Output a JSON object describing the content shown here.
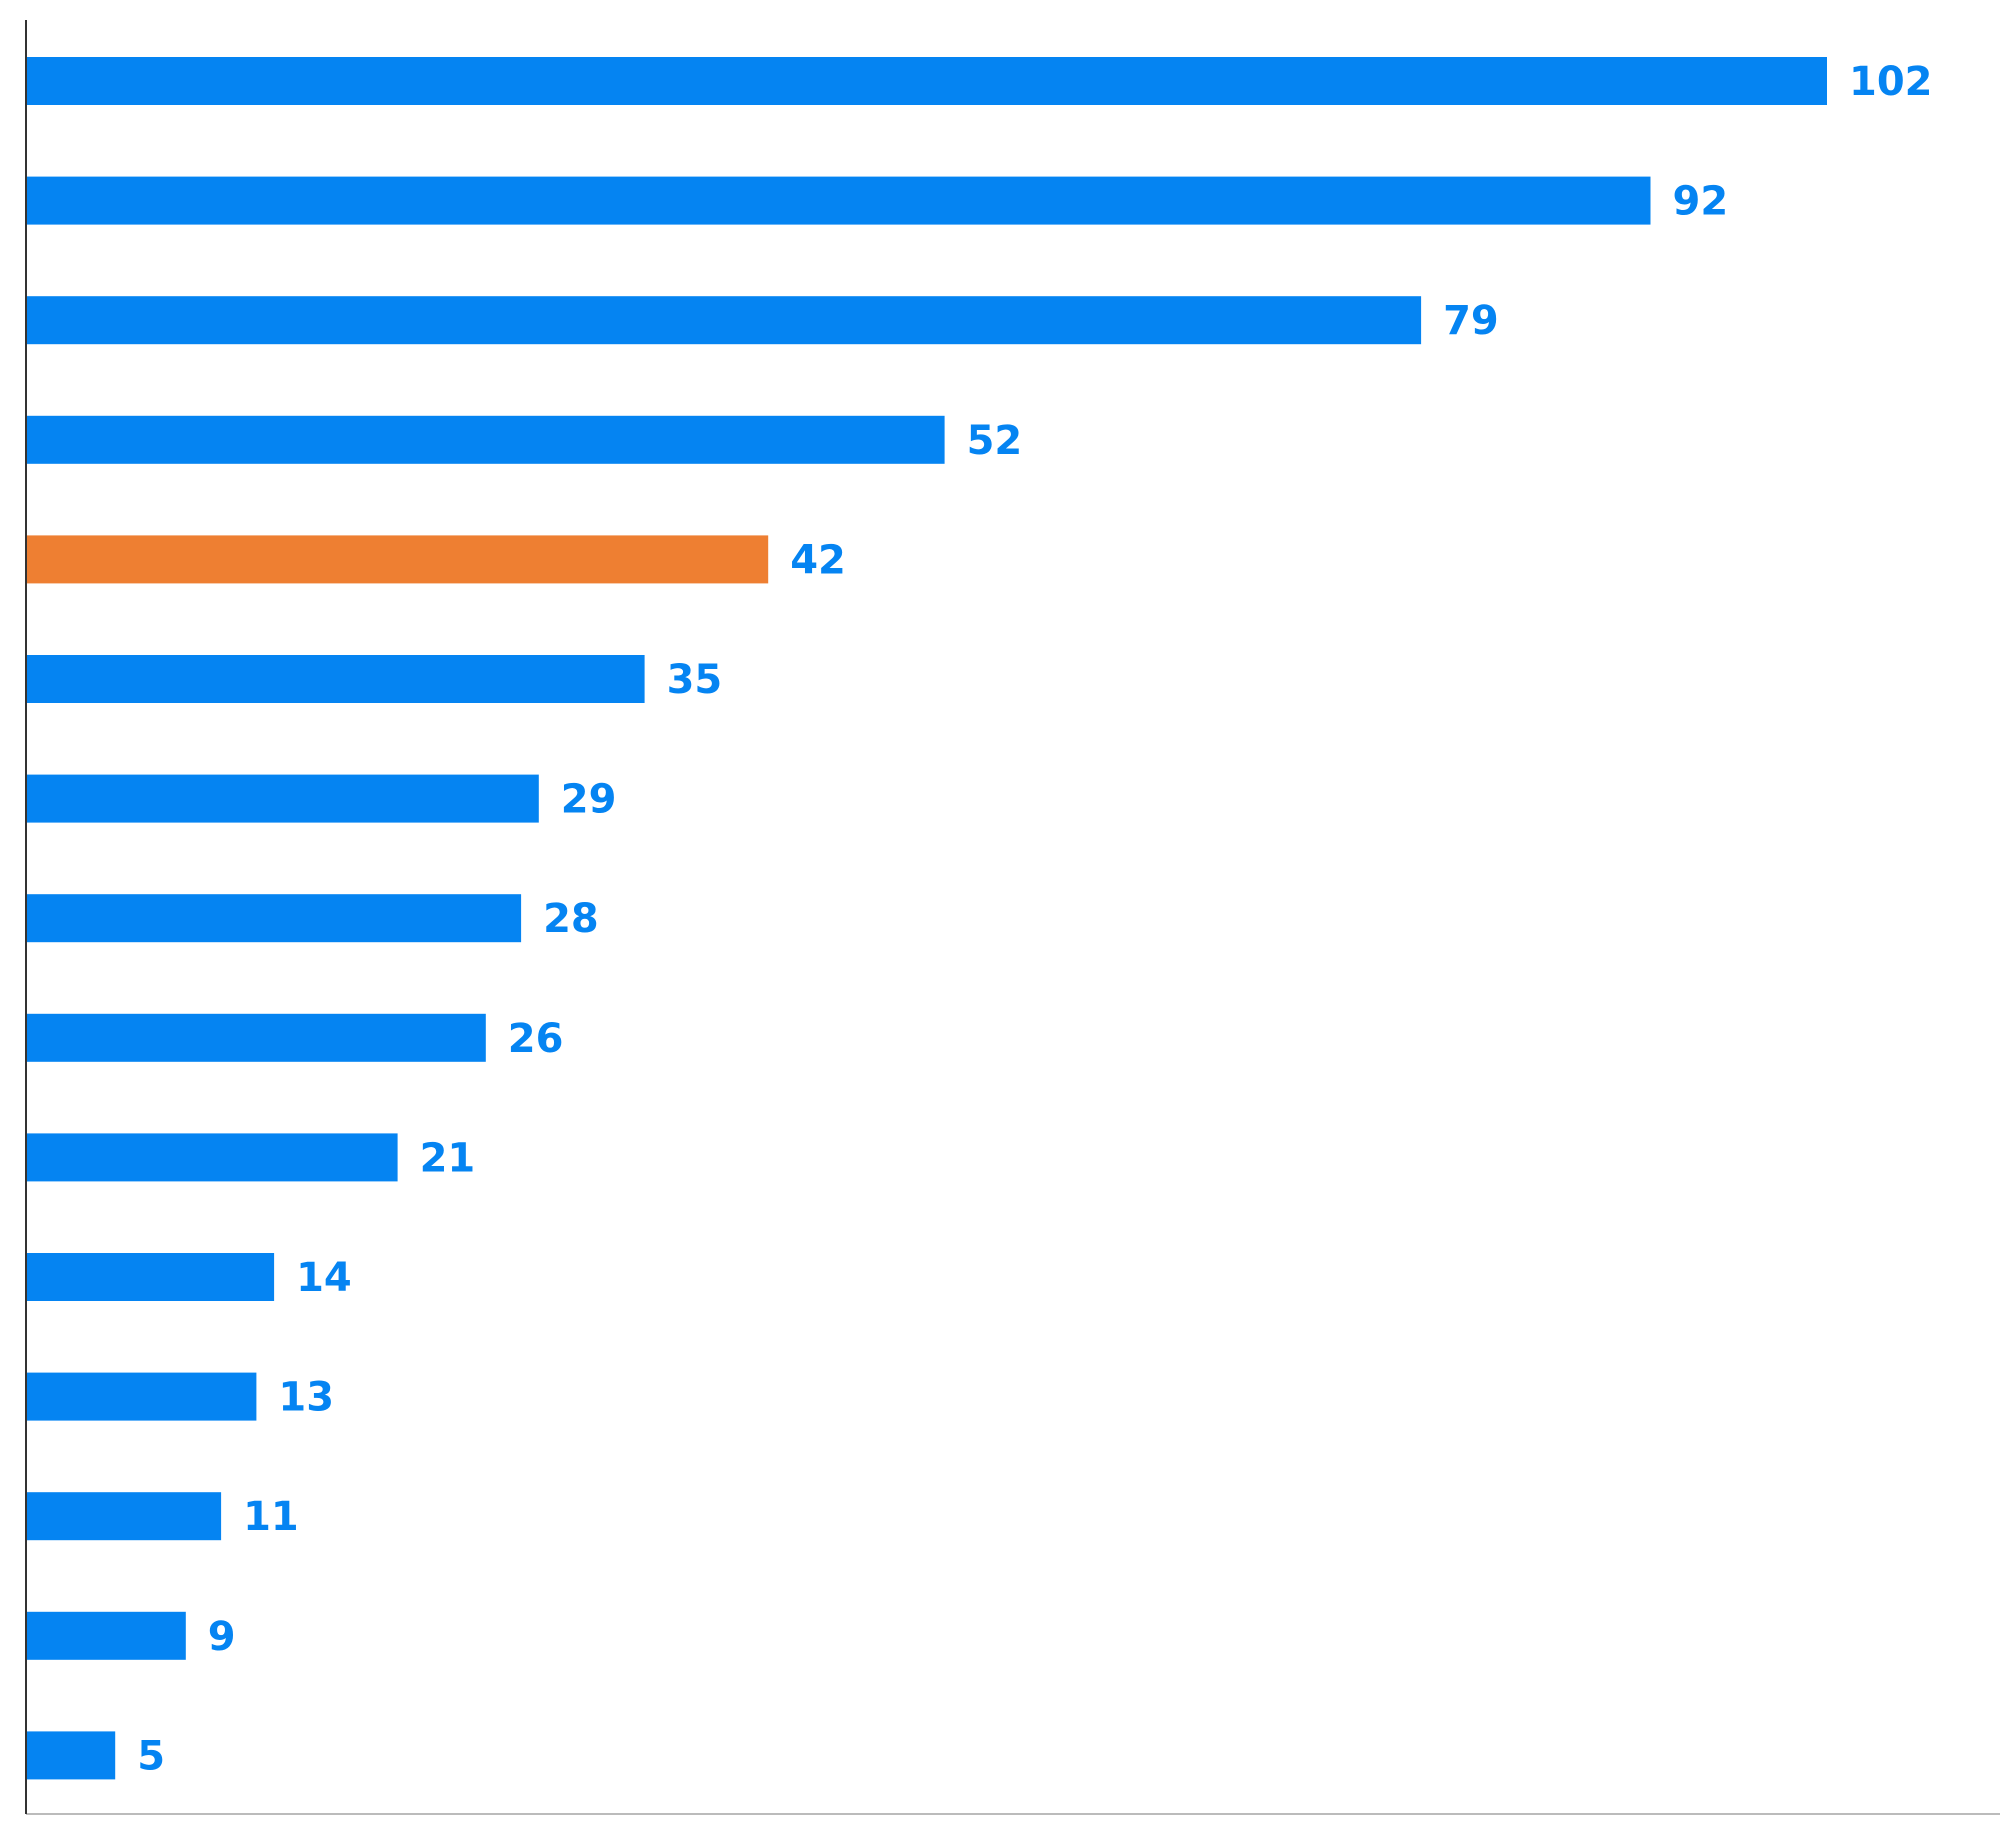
{
  "chart_data": {
    "type": "bar",
    "orientation": "horizontal",
    "values": [
      102,
      92,
      79,
      52,
      42,
      35,
      29,
      28,
      26,
      21,
      14,
      13,
      11,
      9,
      5
    ],
    "highlight_index": 4,
    "xlim": [
      0,
      110
    ],
    "grid": false,
    "legend": "none",
    "title": "",
    "xlabel": "",
    "ylabel": "",
    "colors": {
      "bar": "#0584F2",
      "highlight": "#EE7F32",
      "label": "#0584F2",
      "axis": "#333333",
      "baseline": "#bbbbbb"
    }
  }
}
